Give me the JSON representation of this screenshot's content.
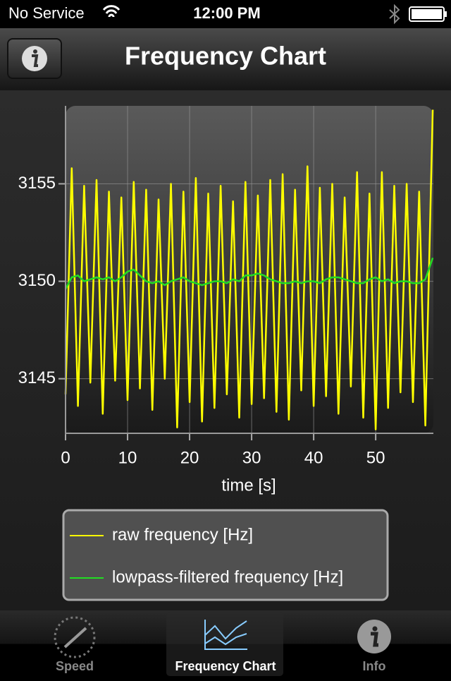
{
  "status_bar": {
    "carrier": "No Service",
    "time": "12:00 PM"
  },
  "nav_bar": {
    "title": "Frequency Chart"
  },
  "chart_data": {
    "type": "line",
    "x": [
      0,
      1,
      2,
      3,
      4,
      5,
      6,
      7,
      8,
      9,
      10,
      11,
      12,
      13,
      14,
      15,
      16,
      17,
      18,
      19,
      20,
      21,
      22,
      23,
      24,
      25,
      26,
      27,
      28,
      29,
      30,
      31,
      32,
      33,
      34,
      35,
      36,
      37,
      38,
      39,
      40,
      41,
      42,
      43,
      44,
      45,
      46,
      47,
      48,
      49,
      50,
      51,
      52,
      53,
      54,
      55,
      56,
      57,
      58,
      59.2
    ],
    "series": [
      {
        "name": "raw frequency [Hz]",
        "color": "#ffff00",
        "values": [
          3144.2,
          3155.8,
          3143.6,
          3154.9,
          3144.8,
          3155.2,
          3143.2,
          3154.6,
          3144.9,
          3154.3,
          3143.9,
          3155.1,
          3144.5,
          3154.7,
          3143.4,
          3154.2,
          3145.0,
          3155.0,
          3142.5,
          3154.6,
          3143.8,
          3155.3,
          3142.8,
          3154.5,
          3143.5,
          3154.9,
          3144.2,
          3154.1,
          3143.0,
          3155.1,
          3143.7,
          3154.4,
          3144.0,
          3155.2,
          3143.3,
          3155.5,
          3142.9,
          3154.7,
          3144.4,
          3155.9,
          3143.6,
          3154.8,
          3144.1,
          3155.0,
          3143.2,
          3154.3,
          3144.6,
          3155.6,
          3143.0,
          3154.5,
          3142.4,
          3155.6,
          3143.5,
          3154.9,
          3144.3,
          3155.0,
          3143.8,
          3154.6,
          3142.6,
          3158.8
        ]
      },
      {
        "name": "lowpass-filtered frequency [Hz]",
        "color": "#22dd22",
        "values": [
          3149.6,
          3150.2,
          3150.3,
          3150.0,
          3150.1,
          3150.2,
          3150.1,
          3150.2,
          3150.0,
          3150.2,
          3150.5,
          3150.6,
          3150.3,
          3150.0,
          3149.9,
          3150.0,
          3149.8,
          3150.0,
          3150.1,
          3150.2,
          3150.0,
          3149.9,
          3149.8,
          3149.9,
          3150.0,
          3150.0,
          3149.9,
          3150.1,
          3150.0,
          3150.3,
          3150.3,
          3150.4,
          3150.3,
          3150.1,
          3150.0,
          3149.9,
          3149.9,
          3150.0,
          3149.9,
          3150.0,
          3150.0,
          3149.9,
          3150.1,
          3150.2,
          3150.2,
          3150.1,
          3150.0,
          3149.9,
          3149.9,
          3150.1,
          3150.2,
          3150.0,
          3150.1,
          3149.9,
          3150.0,
          3150.0,
          3149.9,
          3149.9,
          3150.1,
          3151.2
        ]
      }
    ],
    "xlabel": "time [s]",
    "xlim": [
      0,
      59.3
    ],
    "xticks": [
      0,
      10,
      20,
      30,
      40,
      50
    ],
    "ylim": [
      3142.2,
      3159
    ],
    "yticks": [
      3145,
      3150,
      3155
    ],
    "grid": true
  },
  "tab_bar": {
    "tabs": [
      "Speed",
      "Frequency Chart",
      "Info"
    ],
    "selected": 1
  }
}
